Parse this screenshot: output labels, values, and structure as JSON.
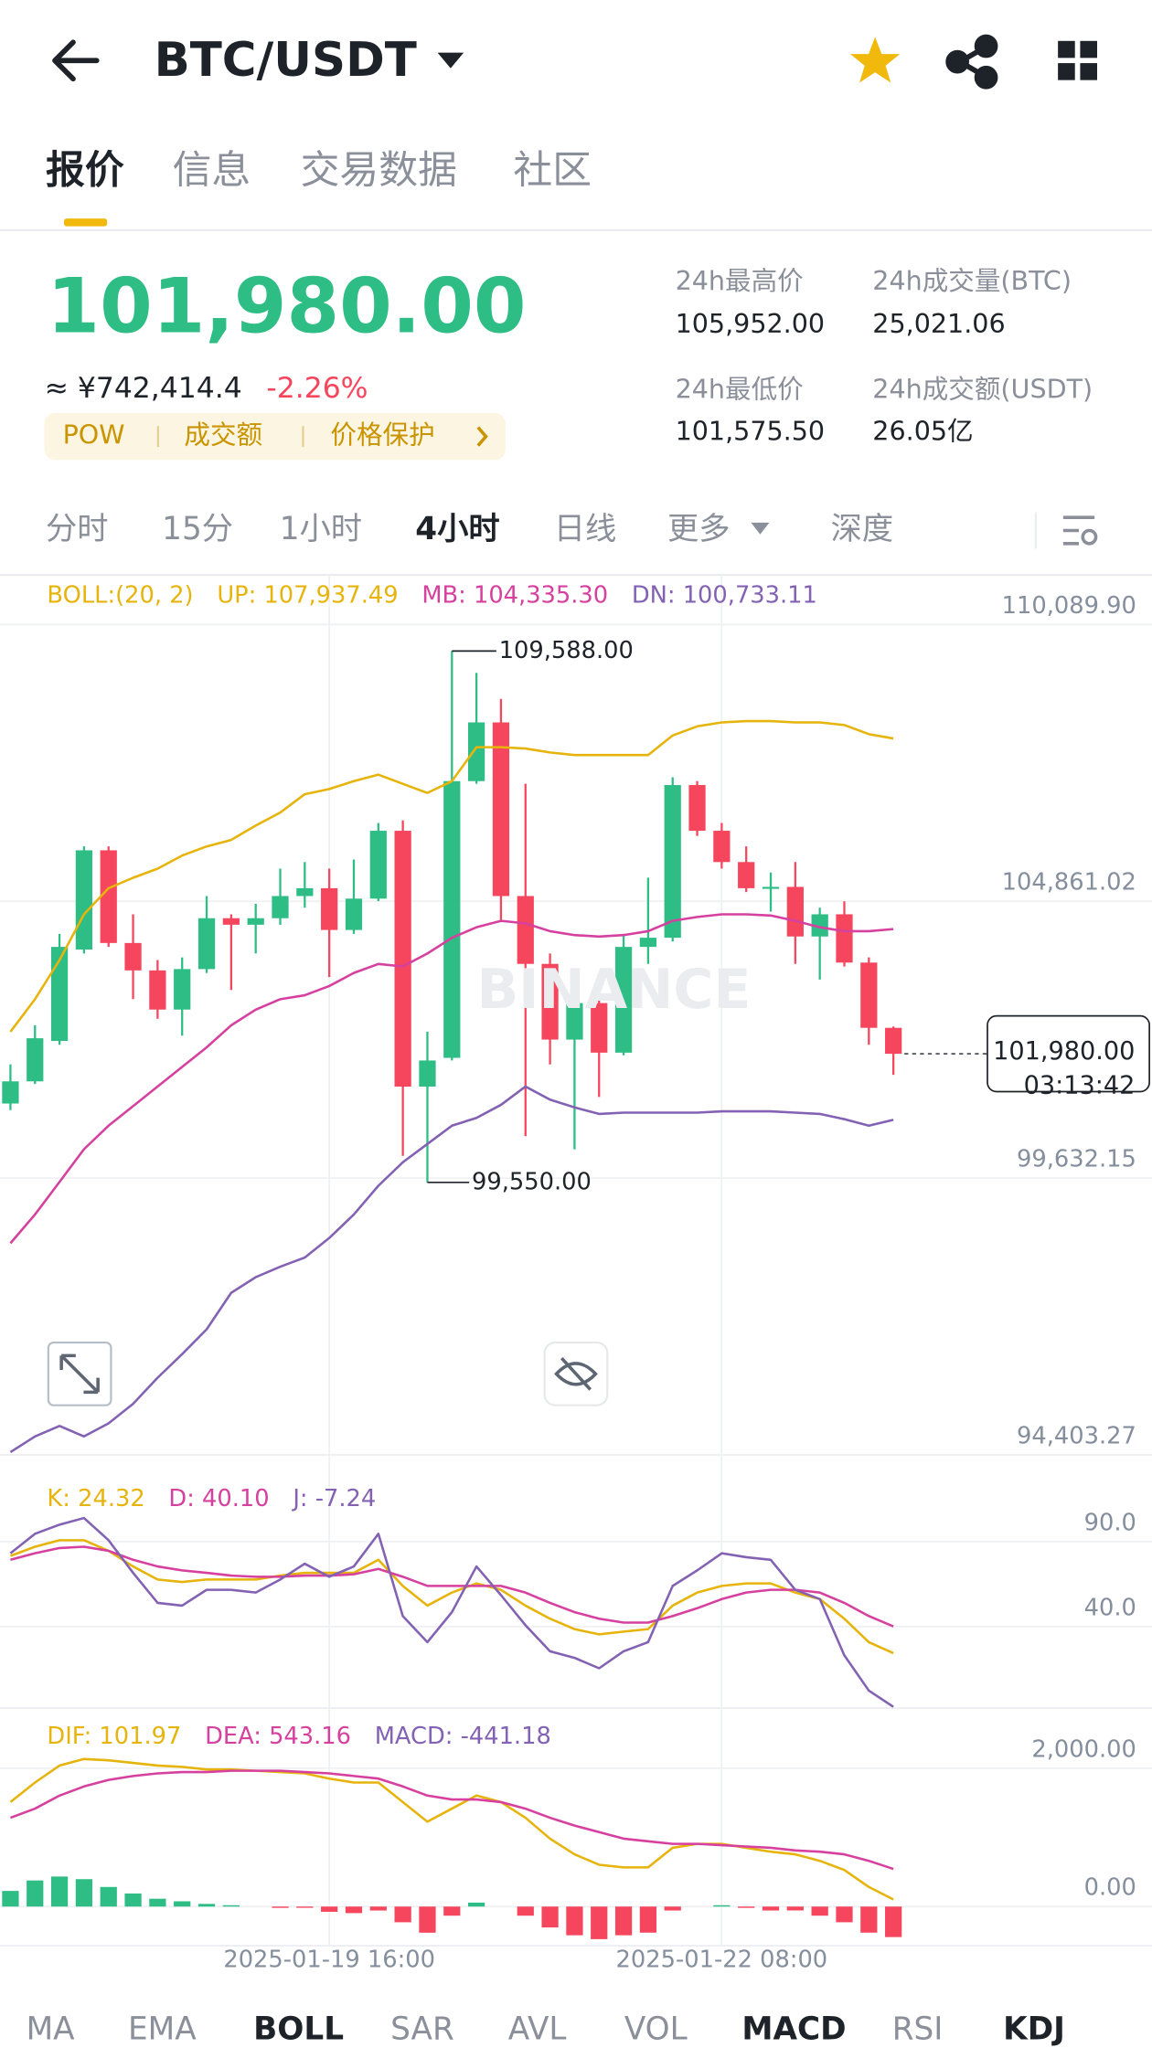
{
  "header": {
    "title": "BTC/USDT"
  },
  "tabs": [
    "报价",
    "信息",
    "交易数据",
    "社区"
  ],
  "price": {
    "last": "101,980.00",
    "cny": "≈ ¥742,414.4",
    "change": "-2.26%",
    "tags": [
      "POW",
      "成交额",
      "价格保护"
    ],
    "stats": [
      {
        "label": "24h最高价",
        "value": "105,952.00"
      },
      {
        "label": "24h成交量(BTC)",
        "value": "25,021.06"
      },
      {
        "label": "24h最低价",
        "value": "101,575.50"
      },
      {
        "label": "24h成交额(USDT)",
        "value": "26.05亿"
      }
    ]
  },
  "intervals": [
    "分时",
    "15分",
    "1小时",
    "4小时",
    "日线",
    "更多",
    "深度"
  ],
  "watermark": "BINANCE",
  "indicators": [
    "MA",
    "EMA",
    "BOLL",
    "SAR",
    "AVL",
    "VOL",
    "MACD",
    "RSI",
    "KDJ"
  ],
  "chart_data": [
    {
      "type": "candlestick",
      "categories": [
        null,
        null,
        null,
        null,
        null,
        null,
        null,
        null,
        null,
        null,
        null,
        null,
        null,
        "2025-01-19 16:00",
        null,
        null,
        null,
        null,
        null,
        null,
        null,
        null,
        null,
        null,
        null,
        null,
        null,
        null,
        null,
        "2025-01-22 08:00",
        null,
        null,
        null,
        null,
        null,
        null,
        null
      ],
      "candles": {
        "open": [
          101040,
          101459,
          102223,
          103949,
          105824,
          104073,
          103555,
          102815,
          103580,
          104541,
          104418,
          104541,
          104960,
          105108,
          104319,
          104911,
          106193,
          101360,
          101903,
          107131,
          108240,
          104960,
          103678,
          102248,
          102938,
          102001,
          103999,
          104172,
          107057,
          106193,
          105602,
          105108,
          105133,
          104196,
          104615,
          103703,
          102470
        ],
        "high": [
          101779,
          102519,
          104245,
          105898,
          105898,
          104615,
          103752,
          103801,
          104960,
          104615,
          104813,
          105478,
          105602,
          105478,
          105651,
          106341,
          106391,
          102396,
          109588,
          109177,
          108684,
          107081,
          103875,
          103259,
          103136,
          104245,
          105306,
          107205,
          107131,
          106341,
          105898,
          105404,
          105602,
          104739,
          104861,
          103801,
          102495
        ],
        "low": [
          100916,
          101409,
          102149,
          103875,
          103999,
          103012,
          102642,
          102322,
          103506,
          103185,
          103875,
          104418,
          104739,
          103432,
          104245,
          104862,
          100053,
          99550,
          101853,
          107081,
          104492,
          100423,
          101779,
          100176,
          101163,
          101952,
          103678,
          104100,
          106095,
          105478,
          105035,
          104665,
          103678,
          103382,
          103629,
          102149,
          101582
        ],
        "close": [
          101459,
          102273,
          103999,
          105824,
          104073,
          103555,
          102815,
          103580,
          104541,
          104418,
          104541,
          104960,
          105108,
          104319,
          104911,
          106193,
          101360,
          101853,
          107131,
          108240,
          104960,
          103678,
          102248,
          102938,
          102001,
          103999,
          104172,
          107057,
          106193,
          105602,
          105108,
          105133,
          104196,
          104615,
          103703,
          102470,
          101980
        ]
      },
      "up_color": "#2ebd85",
      "down_color": "#f6465d",
      "series": [
        {
          "color": "#e6b40c",
          "values": [
            102396,
            103012,
            103752,
            104615,
            105108,
            105306,
            105478,
            105725,
            105898,
            106021,
            106292,
            106539,
            106884,
            106983,
            107131,
            107254,
            107081,
            106909,
            107131,
            107772,
            107772,
            107747,
            107673,
            107624,
            107624,
            107624,
            107624,
            107994,
            108166,
            108240,
            108265,
            108265,
            108240,
            108240,
            108191,
            108018,
            107937.49
          ]
        },
        {
          "color": "#d6409f",
          "values": [
            98401,
            98943,
            99560,
            100176,
            100620,
            100990,
            101360,
            101730,
            102100,
            102519,
            102815,
            103012,
            103086,
            103259,
            103506,
            103678,
            103629,
            103875,
            104171,
            104369,
            104492,
            104443,
            104295,
            104221,
            104196,
            104221,
            104295,
            104492,
            104566,
            104615,
            104615,
            104591,
            104492,
            104369,
            104295,
            104295,
            104335.3
          ]
        },
        {
          "color": "#8361b3",
          "values": [
            94455,
            94751,
            94949,
            94751,
            94998,
            95368,
            95861,
            96305,
            96773,
            97464,
            97760,
            97957,
            98130,
            98500,
            98943,
            99486,
            99930,
            100275,
            100620,
            100768,
            101015,
            101360,
            101114,
            100966,
            100842,
            100867,
            100867,
            100867,
            100867,
            100892,
            100892,
            100892,
            100867,
            100842,
            100744,
            100620,
            100733.11
          ]
        }
      ],
      "legend": [
        "BOLL:(20, 2)",
        "UP: 107,937.49",
        "MB: 104,335.30",
        "DN: 100,733.11"
      ],
      "legend_colors": [
        "#e6b40c",
        "#e6b40c",
        "#d6409f",
        "#8361b3"
      ],
      "ylim": [
        94403.27,
        111027
      ],
      "yticks": [
        {
          "value": 110089.9,
          "label": "110,089.90"
        },
        {
          "value": 104861.02,
          "label": "104,861.02"
        },
        {
          "value": 99632.15,
          "label": "99,632.15"
        },
        {
          "value": 94403.27,
          "label": "94,403.27"
        }
      ],
      "max_label": "109,588.00",
      "min_label": "99,550.00",
      "last_label": "101,980.00",
      "countdown": "03:13:42",
      "grid": true
    },
    {
      "type": "line",
      "series": [
        {
          "color": "#e6b40c",
          "values": [
            81.6,
            87,
            90.8,
            90.8,
            84.6,
            75.4,
            67.7,
            66.2,
            67.7,
            67.7,
            67.7,
            70,
            71.6,
            71.6,
            71.6,
            79.3,
            63.9,
            52.3,
            60,
            65.4,
            61.6,
            52.3,
            44.6,
            38.5,
            35.4,
            37,
            38.5,
            52.3,
            60,
            63.9,
            65.4,
            65.4,
            60,
            56.2,
            44.6,
            30.8,
            24.32
          ]
        },
        {
          "color": "#d6409f",
          "values": [
            79.3,
            83.1,
            86.2,
            87,
            84.6,
            79.3,
            75.4,
            73.1,
            71.6,
            70,
            69.3,
            69.3,
            70,
            70,
            70.8,
            73.9,
            69.3,
            63.9,
            63.9,
            63.9,
            63.9,
            60,
            53.9,
            48.5,
            44.6,
            42.3,
            42.3,
            46.2,
            50.8,
            56.2,
            60,
            61.6,
            61.6,
            60,
            53.9,
            46.2,
            40.1
          ]
        },
        {
          "color": "#8361b3",
          "values": [
            83.1,
            94.6,
            100,
            103.9,
            90.8,
            71.6,
            53.9,
            52.3,
            61.6,
            61.6,
            60,
            67.7,
            77,
            69.3,
            75.4,
            94.6,
            46.2,
            30.8,
            48.5,
            75.4,
            58.5,
            40.8,
            25.4,
            21.6,
            15.4,
            25.4,
            30.8,
            63.9,
            73.1,
            83.1,
            80.8,
            79.3,
            61.6,
            56.2,
            23.1,
            2.3,
            -7.24
          ]
        }
      ],
      "legend": [
        "K: 24.32",
        "D: 40.10",
        "J: -7.24"
      ],
      "legend_colors": [
        "#e6b40c",
        "#d6409f",
        "#8361b3"
      ],
      "ylim": [
        -8,
        138
      ],
      "yticks": [
        {
          "value": 90,
          "label": "90.0"
        },
        {
          "value": 40,
          "label": "40.0"
        }
      ]
    },
    {
      "type": "combo",
      "series": [
        {
          "color": "#e6b40c",
          "values": [
            1509,
            1792,
            2038,
            2132,
            2113,
            2076,
            2038,
            2019,
            1981,
            1981,
            1962,
            1943,
            1925,
            1849,
            1792,
            1792,
            1509,
            1226,
            1415,
            1604,
            1509,
            1283,
            981,
            755,
            604,
            566,
            566,
            849,
            906,
            906,
            849,
            792,
            755,
            660,
            528,
            283,
            101.97
          ]
        },
        {
          "color": "#d6409f",
          "values": [
            1283,
            1415,
            1604,
            1736,
            1830,
            1887,
            1925,
            1943,
            1943,
            1962,
            1962,
            1962,
            1943,
            1925,
            1887,
            1849,
            1736,
            1604,
            1547,
            1547,
            1509,
            1415,
            1283,
            1170,
            1075,
            981,
            943,
            906,
            906,
            887,
            868,
            849,
            811,
            792,
            755,
            660,
            543.16
          ]
        }
      ],
      "histogram": [
        226,
        377,
        434,
        396,
        283,
        189,
        113,
        76,
        38,
        19,
        0,
        -19,
        -18,
        -76,
        -95,
        -57,
        -227,
        -378,
        -132,
        57,
        0,
        -132,
        -302,
        -415,
        -471,
        -415,
        -377,
        -57,
        0,
        19,
        -19,
        -57,
        -56,
        -132,
        -227,
        -377,
        -441.18
      ],
      "up_color": "#2ebd85",
      "down_color": "#f6465d",
      "legend": [
        "DIF: 101.97",
        "DEA: 543.16",
        "MACD: -441.18"
      ],
      "legend_colors": [
        "#e6b40c",
        "#d6409f",
        "#8361b3"
      ],
      "ylim": [
        -566,
        2793
      ],
      "yticks": [
        {
          "value": 2000,
          "label": "2,000.00"
        },
        {
          "value": 0,
          "label": "0.00"
        }
      ]
    }
  ]
}
